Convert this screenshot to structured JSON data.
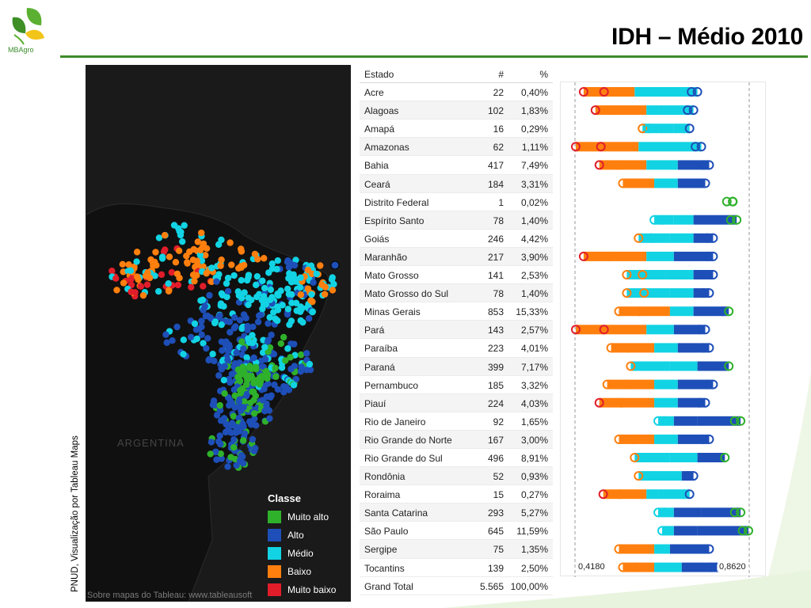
{
  "header": {
    "title": "IDH – Médio 2010",
    "logo_text": "MBAgro"
  },
  "side_caption": "PNUD, Visualização por Tableau Maps",
  "map": {
    "credit": "Sobre mapas do Tableau: www.tableausoft",
    "country_label": "ARGENTINA",
    "legend": {
      "title": "Classe",
      "items": [
        {
          "label": "Muito alto",
          "color": "#2fb12b"
        },
        {
          "label": "Alto",
          "color": "#1e4fb8"
        },
        {
          "label": "Médio",
          "color": "#12d3e3"
        },
        {
          "label": "Baixo",
          "color": "#ff7f0e"
        },
        {
          "label": "Muito baixo",
          "color": "#e11d2a"
        }
      ]
    }
  },
  "table": {
    "headers": {
      "estado": "Estado",
      "count": "#",
      "pct": "%"
    },
    "rows": [
      {
        "estado": "Acre",
        "count": "22",
        "pct": "0,40%",
        "min": 0.44,
        "mid1": 0.57,
        "mid2": 0.64,
        "max": 0.73
      },
      {
        "estado": "Alagoas",
        "count": "102",
        "pct": "1,83%",
        "min": 0.47,
        "mid1": 0.6,
        "mid2": 0.63,
        "max": 0.72
      },
      {
        "estado": "Amapá",
        "count": "16",
        "pct": "0,29%",
        "min": 0.59,
        "mid1": 0.63,
        "mid2": 0.67,
        "max": 0.71
      },
      {
        "estado": "Amazonas",
        "count": "62",
        "pct": "1,11%",
        "min": 0.42,
        "mid1": 0.58,
        "mid2": 0.64,
        "max": 0.74
      },
      {
        "estado": "Bahia",
        "count": "417",
        "pct": "7,49%",
        "min": 0.48,
        "mid1": 0.6,
        "mid2": 0.68,
        "max": 0.76
      },
      {
        "estado": "Ceará",
        "count": "184",
        "pct": "3,31%",
        "min": 0.54,
        "mid1": 0.62,
        "mid2": 0.68,
        "max": 0.75
      },
      {
        "estado": "Distrito Federal",
        "count": "1",
        "pct": "0,02%",
        "min": 0.82,
        "mid1": 0.82,
        "mid2": 0.82,
        "max": 0.82
      },
      {
        "estado": "Espírito Santo",
        "count": "78",
        "pct": "1,40%",
        "min": 0.62,
        "mid1": 0.67,
        "mid2": 0.72,
        "max": 0.83
      },
      {
        "estado": "Goiás",
        "count": "246",
        "pct": "4,42%",
        "min": 0.58,
        "mid1": 0.66,
        "mid2": 0.72,
        "max": 0.77
      },
      {
        "estado": "Maranhão",
        "count": "217",
        "pct": "3,90%",
        "min": 0.44,
        "mid1": 0.6,
        "mid2": 0.67,
        "max": 0.77
      },
      {
        "estado": "Mato Grosso",
        "count": "141",
        "pct": "2,53%",
        "min": 0.55,
        "mid1": 0.65,
        "mid2": 0.72,
        "max": 0.77
      },
      {
        "estado": "Mato Grosso do Sul",
        "count": "78",
        "pct": "1,40%",
        "min": 0.55,
        "mid1": 0.66,
        "mid2": 0.72,
        "max": 0.76
      },
      {
        "estado": "Minas Gerais",
        "count": "853",
        "pct": "15,33%",
        "min": 0.53,
        "mid1": 0.66,
        "mid2": 0.72,
        "max": 0.81
      },
      {
        "estado": "Pará",
        "count": "143",
        "pct": "2,57%",
        "min": 0.42,
        "mid1": 0.6,
        "mid2": 0.67,
        "max": 0.75
      },
      {
        "estado": "Paraíba",
        "count": "223",
        "pct": "4,01%",
        "min": 0.51,
        "mid1": 0.62,
        "mid2": 0.68,
        "max": 0.76
      },
      {
        "estado": "Paraná",
        "count": "399",
        "pct": "7,17%",
        "min": 0.56,
        "mid1": 0.66,
        "mid2": 0.73,
        "max": 0.81
      },
      {
        "estado": "Pernambuco",
        "count": "185",
        "pct": "3,32%",
        "min": 0.5,
        "mid1": 0.62,
        "mid2": 0.68,
        "max": 0.77
      },
      {
        "estado": "Piauí",
        "count": "224",
        "pct": "4,03%",
        "min": 0.48,
        "mid1": 0.62,
        "mid2": 0.68,
        "max": 0.75
      },
      {
        "estado": "Rio de Janeiro",
        "count": "92",
        "pct": "1,65%",
        "min": 0.63,
        "mid1": 0.67,
        "mid2": 0.73,
        "max": 0.84
      },
      {
        "estado": "Rio Grande do Norte",
        "count": "167",
        "pct": "3,00%",
        "min": 0.53,
        "mid1": 0.62,
        "mid2": 0.68,
        "max": 0.76
      },
      {
        "estado": "Rio Grande do Sul",
        "count": "496",
        "pct": "8,91%",
        "min": 0.57,
        "mid1": 0.66,
        "mid2": 0.73,
        "max": 0.8
      },
      {
        "estado": "Rondônia",
        "count": "52",
        "pct": "0,93%",
        "min": 0.58,
        "mid1": 0.64,
        "mid2": 0.69,
        "max": 0.72
      },
      {
        "estado": "Roraima",
        "count": "15",
        "pct": "0,27%",
        "min": 0.49,
        "mid1": 0.6,
        "mid2": 0.63,
        "max": 0.71
      },
      {
        "estado": "Santa Catarina",
        "count": "293",
        "pct": "5,27%",
        "min": 0.63,
        "mid1": 0.67,
        "mid2": 0.74,
        "max": 0.84
      },
      {
        "estado": "São Paulo",
        "count": "645",
        "pct": "11,59%",
        "min": 0.64,
        "mid1": 0.67,
        "mid2": 0.73,
        "max": 0.86
      },
      {
        "estado": "Sergipe",
        "count": "75",
        "pct": "1,35%",
        "min": 0.53,
        "mid1": 0.62,
        "mid2": 0.66,
        "max": 0.76
      },
      {
        "estado": "Tocantins",
        "count": "139",
        "pct": "2,50%",
        "min": 0.54,
        "mid1": 0.62,
        "mid2": 0.69,
        "max": 0.78
      }
    ],
    "total": {
      "estado": "Grand Total",
      "count": "5.565",
      "pct": "100,00%"
    }
  },
  "dotplot": {
    "min_label": "0,4180",
    "max_label": "0,8620",
    "range": [
      0.418,
      0.862
    ],
    "colors": {
      "muito_alto": "#2fb12b",
      "alto": "#1e4fb8",
      "medio": "#12d3e3",
      "baixo": "#ff7f0e",
      "muito_baixo": "#e11d2a"
    }
  }
}
